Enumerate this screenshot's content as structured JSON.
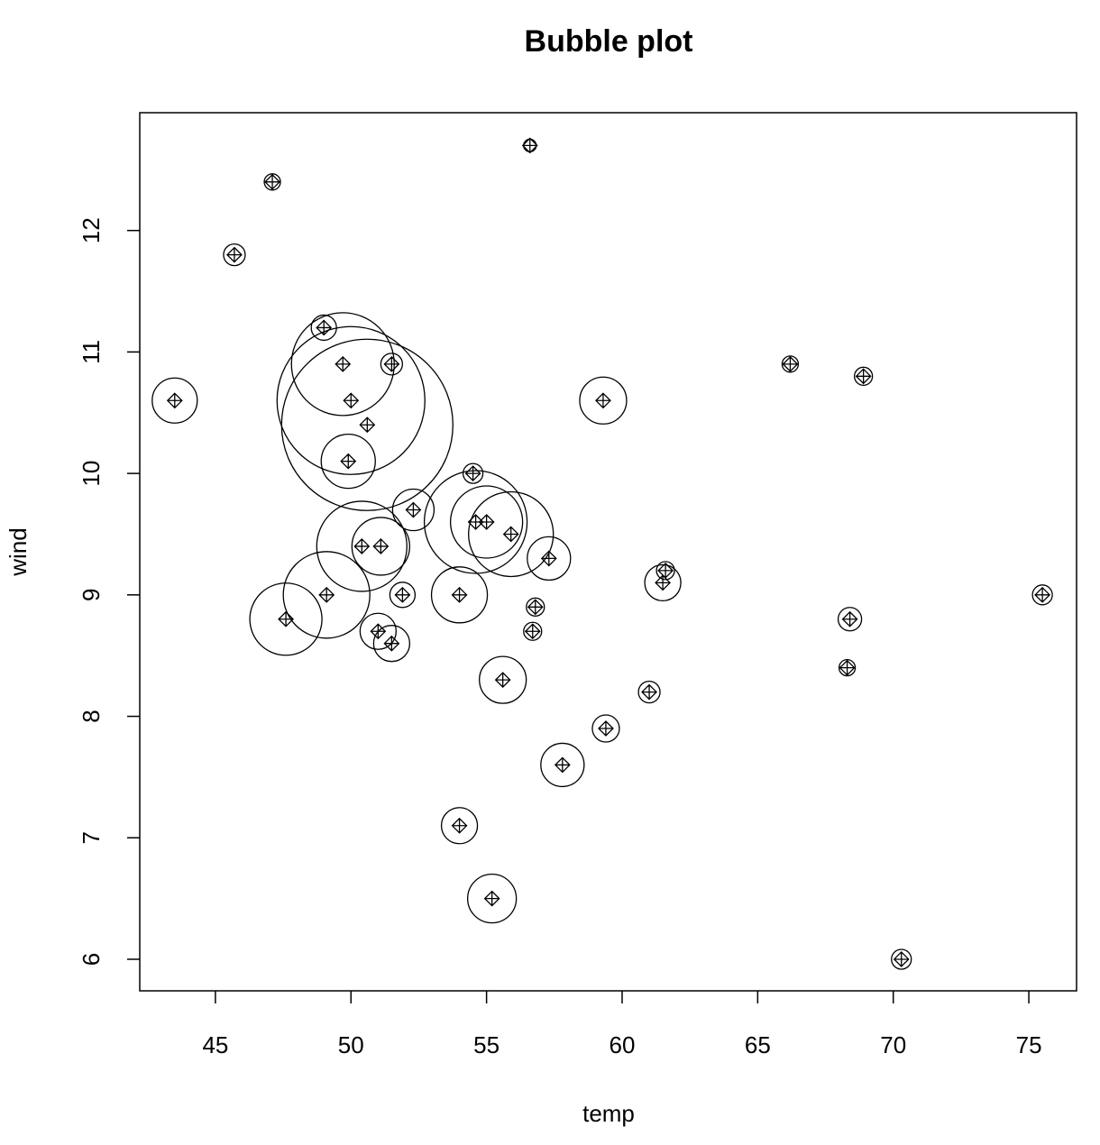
{
  "chart_data": {
    "type": "bubble",
    "title": "Bubble plot",
    "x_label": "temp",
    "y_label": "wind",
    "x": [
      43.5,
      45.7,
      47.1,
      56.6,
      49.0,
      49.7,
      50.0,
      50.6,
      51.5,
      49.9,
      52.3,
      54.5,
      54.6,
      55.0,
      55.9,
      57.3,
      50.4,
      51.1,
      49.1,
      47.6,
      51.9,
      51.0,
      51.5,
      54.0,
      56.8,
      56.7,
      55.6,
      54.0,
      55.2,
      57.8,
      59.4,
      59.3,
      61.0,
      61.5,
      61.6,
      66.2,
      68.9,
      68.4,
      68.3,
      75.5,
      70.3
    ],
    "values": [
      10.6,
      11.8,
      12.4,
      12.7,
      11.2,
      10.9,
      10.6,
      10.4,
      10.9,
      10.1,
      9.7,
      10.0,
      9.6,
      9.6,
      9.5,
      9.3,
      9.4,
      9.4,
      9.0,
      8.8,
      9.0,
      8.7,
      8.6,
      9.0,
      8.9,
      8.7,
      8.3,
      7.1,
      6.5,
      7.6,
      7.9,
      10.6,
      8.2,
      9.1,
      9.2,
      10.9,
      10.8,
      8.8,
      8.4,
      9.0,
      6.0
    ],
    "sizes": [
      25,
      12,
      9,
      7,
      14,
      57,
      82,
      95,
      12,
      30,
      23,
      11,
      57,
      40,
      47,
      24,
      50,
      32,
      48,
      40,
      14,
      20,
      20,
      31,
      10,
      10,
      26,
      20,
      27,
      24,
      15,
      26,
      12,
      20,
      10,
      9,
      10,
      13,
      9,
      11,
      11
    ],
    "color": "#000000",
    "xlim": [
      42.21,
      76.76
    ],
    "xticks": [
      45,
      50,
      55,
      60,
      65,
      70,
      75
    ],
    "ylim": [
      5.74,
      12.97
    ],
    "yticks": [
      6,
      7,
      8,
      9,
      10,
      11,
      12
    ]
  }
}
